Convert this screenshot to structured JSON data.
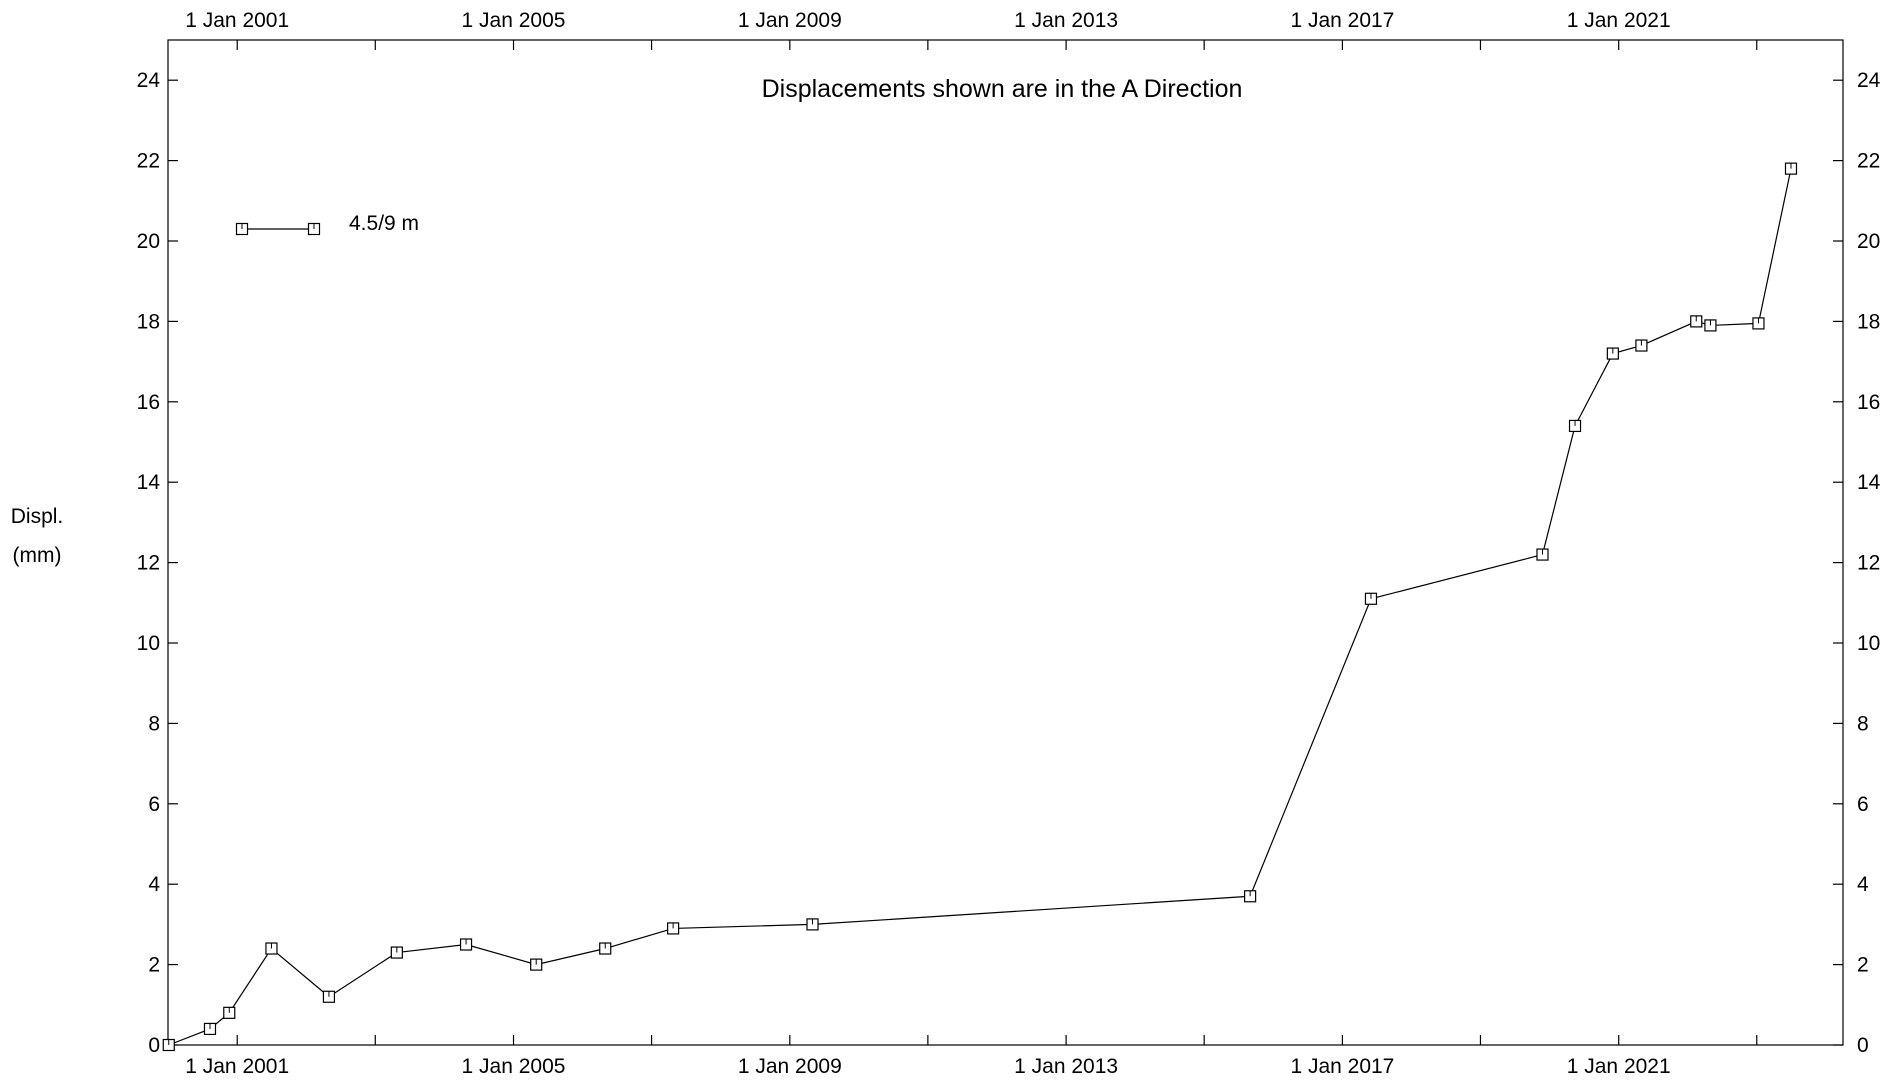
{
  "chart_data": {
    "type": "line",
    "title": "Displacements shown are in the  A Direction",
    "ylabel_line1": "Displ.",
    "ylabel_line2": "(mm)",
    "xlabel": "",
    "x_axis_type": "date",
    "xlim": [
      "2000-01-01",
      "2024-04-01"
    ],
    "ylim": [
      0,
      25
    ],
    "x_ticks": [
      "1 Jan 2001",
      "1 Jan 2005",
      "1 Jan 2009",
      "1 Jan 2013",
      "1 Jan 2017",
      "1 Jan 2021"
    ],
    "y_ticks": [
      0,
      2,
      4,
      6,
      8,
      10,
      12,
      14,
      16,
      18,
      20,
      22,
      24
    ],
    "x_ticks_top": true,
    "y_ticks_right": true,
    "grid": false,
    "legend_position": "top-left",
    "marker": "square",
    "line_color": "#000000",
    "series": [
      {
        "name": "4.5/9 m",
        "x": [
          "2000-01-05",
          "2000-08-10",
          "2000-11-20",
          "2001-07-01",
          "2002-05-01",
          "2003-04-25",
          "2004-04-25",
          "2005-05-01",
          "2006-05-01",
          "2007-04-25",
          "2009-05-01",
          "2015-09-01",
          "2017-06-01",
          "2019-11-25",
          "2020-05-15",
          "2020-12-01",
          "2021-05-01",
          "2022-02-15",
          "2022-05-01",
          "2023-01-10",
          "2023-07-01"
        ],
        "y": [
          0.0,
          0.4,
          0.8,
          2.4,
          1.2,
          2.3,
          2.5,
          2.0,
          2.4,
          2.9,
          3.0,
          3.7,
          11.1,
          12.2,
          15.4,
          17.2,
          17.4,
          18.0,
          17.9,
          17.95,
          21.8
        ]
      }
    ]
  }
}
